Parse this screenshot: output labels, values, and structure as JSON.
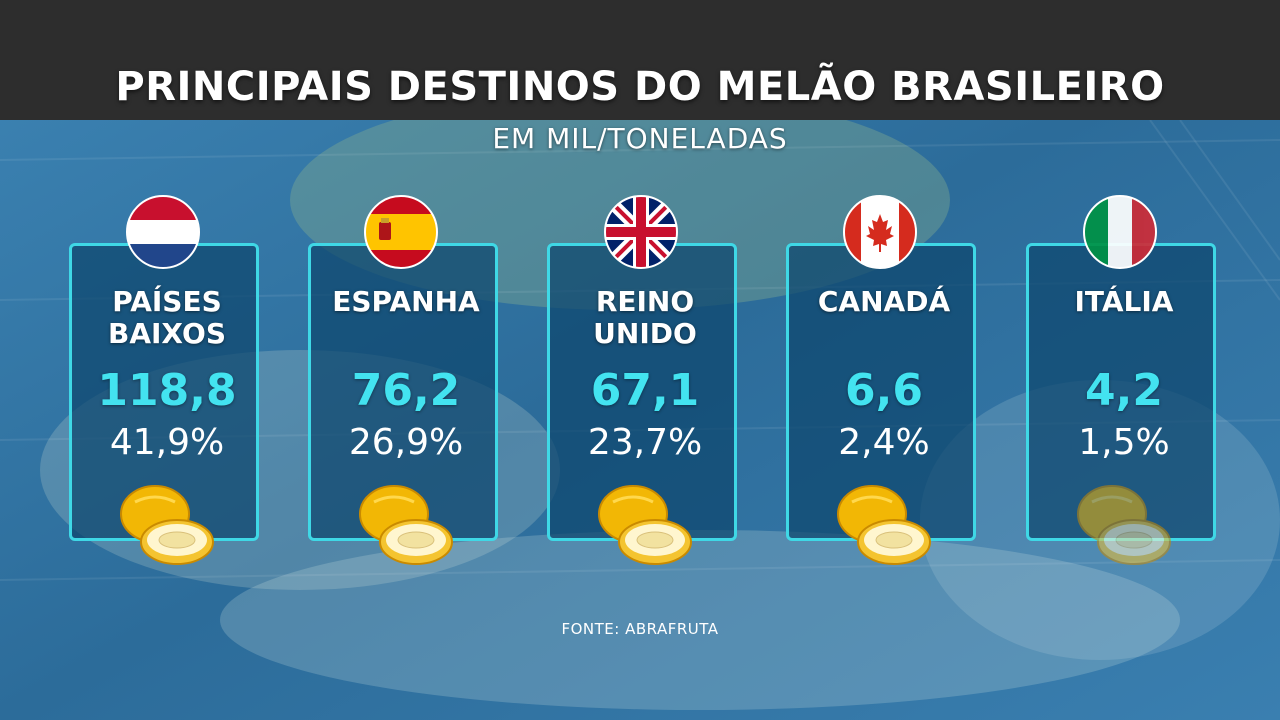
{
  "title": "PRINCIPAIS DESTINOS DO MELÃO BRASILEIRO",
  "subtitle": "EM MIL/TONELADAS",
  "source": "FONTE: ABRAFRUTA",
  "colors": {
    "title_bar": "#2d2d2d",
    "card_border": "#3fd8e6",
    "value_text": "#43e3f0",
    "background": "#2f6f9c"
  },
  "chart_data": {
    "type": "table",
    "title": "PRINCIPAIS DESTINOS DO MELÃO BRASILEIRO",
    "subtitle": "EM MIL/TONELADAS",
    "categories": [
      "PAÍSES BAIXOS",
      "ESPANHA",
      "REINO UNIDO",
      "CANADÁ",
      "ITÁLIA"
    ],
    "series": [
      {
        "name": "EM MIL/TONELADAS",
        "values": [
          118.8,
          76.2,
          67.1,
          6.6,
          4.2
        ]
      },
      {
        "name": "%",
        "values": [
          41.9,
          26.9,
          23.7,
          2.4,
          1.5
        ]
      }
    ]
  },
  "cards": [
    {
      "country_line1": "PAÍSES",
      "country_line2": "BAIXOS",
      "value": "118,8",
      "percent": "41,9%",
      "flag_icon": "netherlands-flag-icon"
    },
    {
      "country_line1": "ESPANHA",
      "country_line2": "",
      "value": "76,2",
      "percent": "26,9%",
      "flag_icon": "spain-flag-icon"
    },
    {
      "country_line1": "REINO",
      "country_line2": "UNIDO",
      "value": "67,1",
      "percent": "23,7%",
      "flag_icon": "united-kingdom-flag-icon"
    },
    {
      "country_line1": "CANADÁ",
      "country_line2": "",
      "value": "6,6",
      "percent": "2,4%",
      "flag_icon": "canada-flag-icon"
    },
    {
      "country_line1": "ITÁLIA",
      "country_line2": "",
      "value": "4,2",
      "percent": "1,5%",
      "flag_icon": "italy-flag-icon"
    }
  ]
}
